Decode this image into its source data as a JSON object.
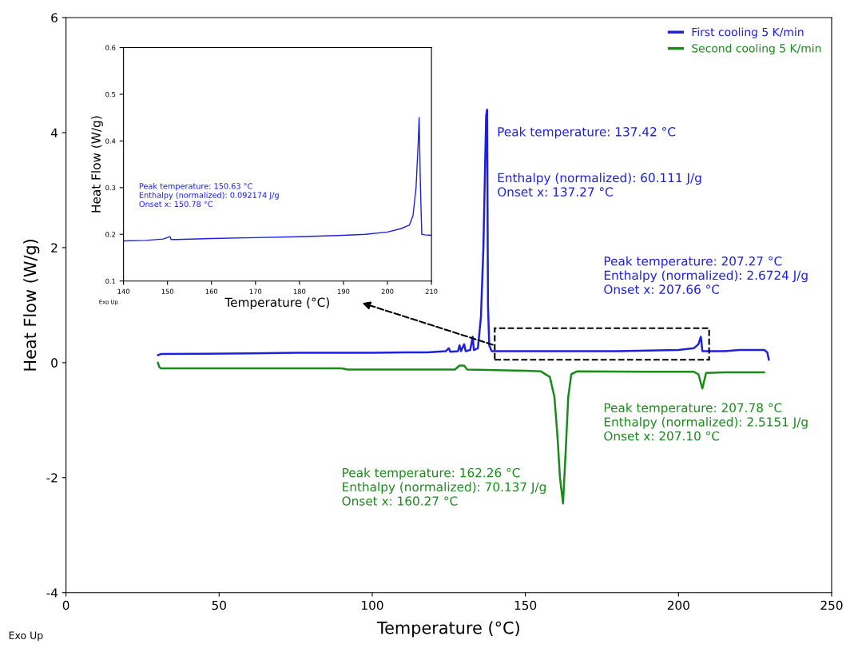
{
  "chart_data": [
    {
      "type": "line",
      "xlabel": "Temperature (°C)",
      "ylabel": "Heat Flow (W/g)",
      "xlim": [
        0,
        250
      ],
      "xticks": [
        0,
        50,
        100,
        150,
        200,
        250
      ],
      "ylim": [
        -4,
        6
      ],
      "yticks": [
        -4,
        -2,
        0,
        2,
        4,
        6
      ],
      "grid": false,
      "legend": "top right",
      "marker": "none",
      "line_style": "solid",
      "series": [
        {
          "name": "First cooling 5 K/min",
          "color": "#1f1fe0",
          "x": [
            30,
            31,
            60,
            75,
            100,
            115,
            118,
            124,
            125,
            125.5,
            128,
            128.5,
            129,
            130,
            130.5,
            132,
            132.8,
            133.2,
            134.5,
            135.5,
            136.3,
            136.8,
            137.2,
            137.5,
            137.8,
            138.2,
            139,
            150,
            180,
            190,
            200,
            205,
            206.5,
            207.3,
            207.8,
            215,
            220,
            228,
            229,
            229.5
          ],
          "values": [
            0.13,
            0.15,
            0.16,
            0.17,
            0.17,
            0.18,
            0.18,
            0.2,
            0.25,
            0.19,
            0.2,
            0.3,
            0.2,
            0.32,
            0.2,
            0.22,
            0.45,
            0.22,
            0.25,
            0.8,
            2.0,
            3.3,
            4.3,
            4.4,
            1.0,
            0.3,
            0.2,
            0.2,
            0.2,
            0.21,
            0.22,
            0.25,
            0.32,
            0.45,
            0.2,
            0.2,
            0.22,
            0.22,
            0.18,
            0.05
          ]
        },
        {
          "name": "Second cooling 5 K/min",
          "color": "#1a8a1a",
          "x": [
            30,
            30.5,
            31,
            90,
            92,
            127,
            128.5,
            130,
            131,
            150,
            155,
            158,
            159.5,
            160.5,
            161.3,
            162.3,
            163.2,
            164,
            165,
            167,
            190,
            205,
            206.5,
            207.8,
            209,
            215,
            228
          ],
          "values": [
            0.0,
            -0.08,
            -0.1,
            -0.1,
            -0.12,
            -0.12,
            -0.05,
            -0.05,
            -0.12,
            -0.14,
            -0.15,
            -0.25,
            -0.6,
            -1.3,
            -2.0,
            -2.45,
            -1.5,
            -0.6,
            -0.2,
            -0.15,
            -0.16,
            -0.16,
            -0.2,
            -0.45,
            -0.18,
            -0.17,
            -0.17
          ]
        }
      ],
      "annotations": [
        "Peak temperature: 137.42 °C",
        "Enthalpy (normalized): 60.111 J/g\nOnset x: 137.27 °C",
        "Peak temperature: 207.27 °C\nEnthalpy (normalized): 2.6724 J/g\nOnset x: 207.66 °C",
        "Peak temperature: 207.78 °C\nEnthalpy (normalized): 2.5151 J/g\nOnset x: 207.10 °C",
        "Peak temperature: 162.26 °C\nEnthalpy (normalized): 70.137 J/g\nOnset x: 160.27 °C",
        "Exo Up"
      ]
    },
    {
      "type": "line",
      "xlabel": "Temperature (°C)",
      "ylabel": "Heat Flow (W/g)",
      "xlim": [
        140,
        210
      ],
      "xticks": [
        140,
        150,
        160,
        170,
        180,
        190,
        200,
        210
      ],
      "ylim": [
        0.1,
        0.6
      ],
      "yticks": [
        0.1,
        0.2,
        0.3,
        0.4,
        0.5,
        0.6
      ],
      "grid": false,
      "marker": "none",
      "line_style": "solid",
      "series": [
        {
          "color": "#1f1fe0",
          "x": [
            140,
            145,
            149,
            150.6,
            150.8,
            152,
            160,
            170,
            180,
            190,
            195,
            200,
            203,
            205,
            205.8,
            206.5,
            207.0,
            207.2,
            207.5,
            207.8,
            208.5,
            210
          ],
          "values": [
            0.186,
            0.187,
            0.19,
            0.195,
            0.189,
            0.189,
            0.191,
            0.193,
            0.195,
            0.198,
            0.2,
            0.205,
            0.212,
            0.22,
            0.24,
            0.3,
            0.4,
            0.45,
            0.3,
            0.2,
            0.199,
            0.198
          ]
        }
      ],
      "annotations": [
        "Peak temperature: 150.63 °C\nEnthalpy (normalized): 0.092174 J/g\nOnset x: 150.78 °C",
        "Exo Up"
      ]
    }
  ]
}
